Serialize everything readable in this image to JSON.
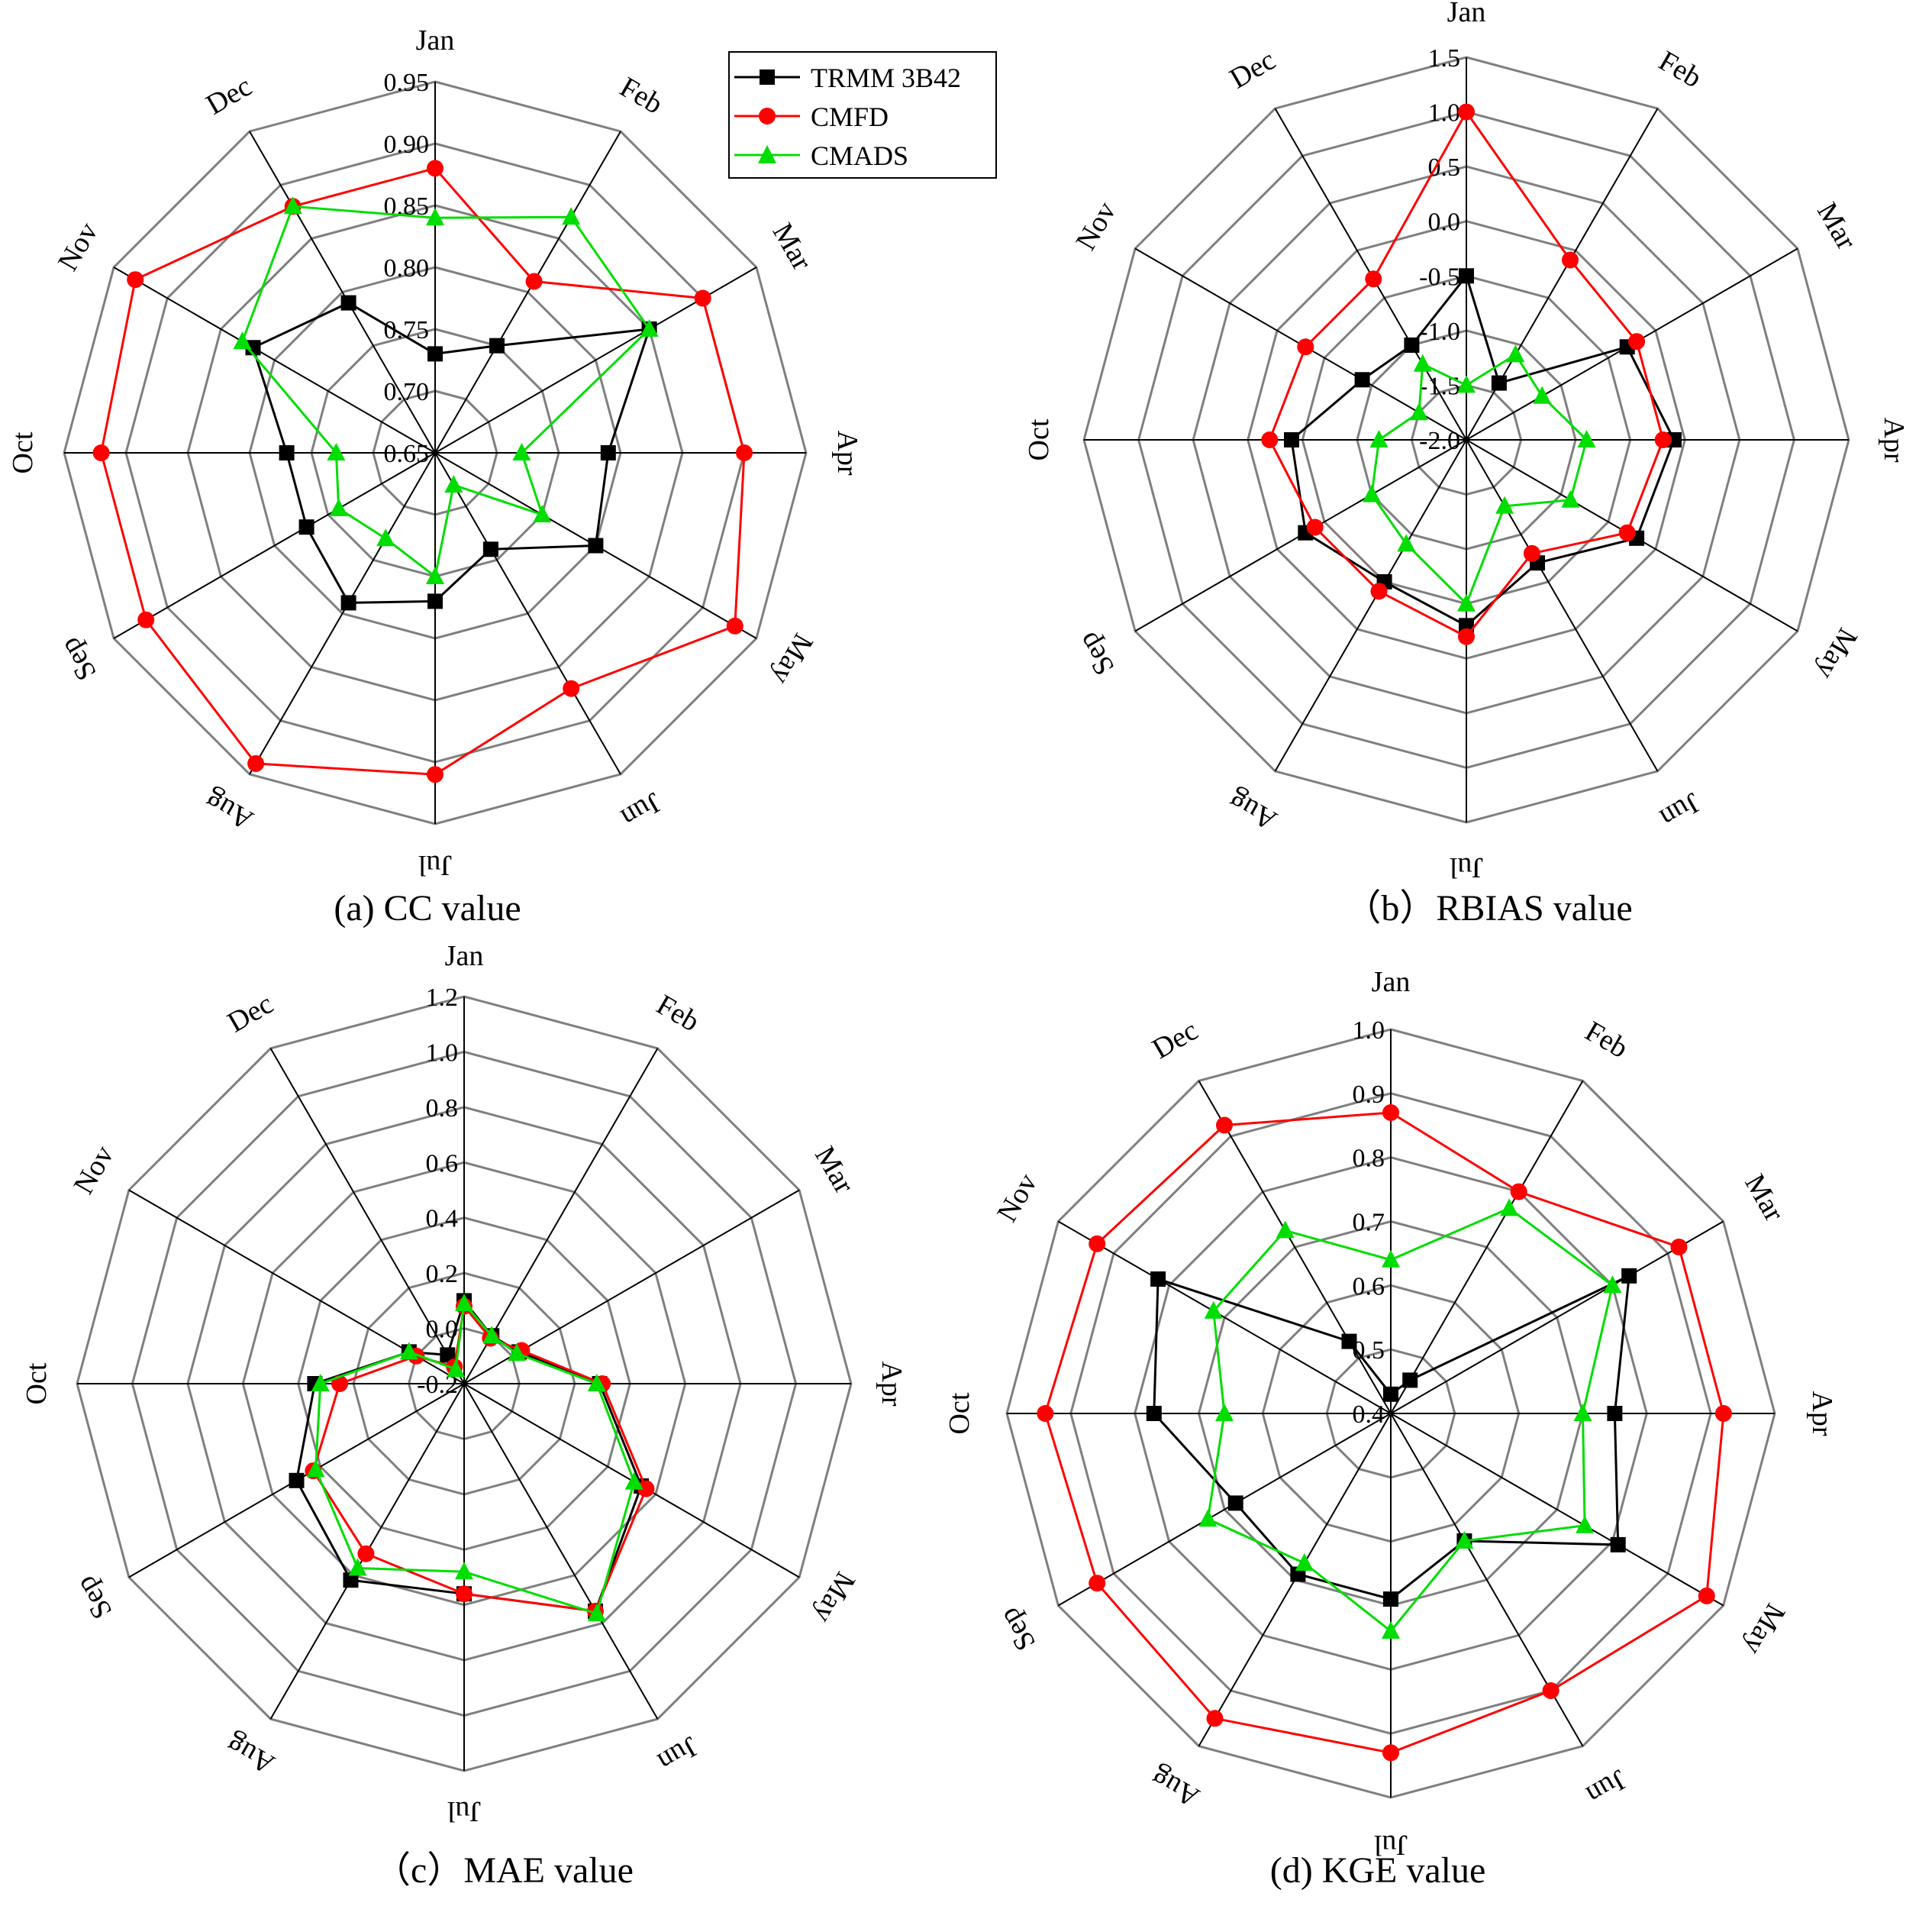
{
  "legend": [
    {
      "name": "TRMM 3B42",
      "color": "#000000",
      "marker": "square"
    },
    {
      "name": "CMFD",
      "color": "#ff0000",
      "marker": "circle"
    },
    {
      "name": "CMADS",
      "color": "#00dd00",
      "marker": "triangle"
    }
  ],
  "chart_data": [
    {
      "type": "radar",
      "caption": "(a) CC value",
      "months": [
        "Jan",
        "Feb",
        "Mar",
        "Apr",
        "May",
        "Jun",
        "Jul",
        "Aug",
        "Sep",
        "Oct",
        "Nov",
        "Dec"
      ],
      "rlim": [
        0.65,
        0.95
      ],
      "ticks": [
        "0.65",
        "0.70",
        "0.75",
        "0.80",
        "0.85",
        "0.90",
        "0.95"
      ],
      "grid": true,
      "legend_position": "top-right",
      "series": [
        {
          "name": "TRMM 3B42",
          "values": [
            0.73,
            0.75,
            0.85,
            0.79,
            0.8,
            0.74,
            0.77,
            0.79,
            0.77,
            0.77,
            0.82,
            0.79
          ]
        },
        {
          "name": "CMFD",
          "values": [
            0.88,
            0.81,
            0.9,
            0.9,
            0.93,
            0.87,
            0.91,
            0.94,
            0.92,
            0.92,
            0.93,
            0.88
          ]
        },
        {
          "name": "CMADS",
          "values": [
            0.84,
            0.87,
            0.85,
            0.72,
            0.75,
            0.68,
            0.75,
            0.73,
            0.74,
            0.73,
            0.83,
            0.88
          ]
        }
      ]
    },
    {
      "type": "radar",
      "caption": "（b）RBIAS value",
      "months": [
        "Jan",
        "Feb",
        "Mar",
        "Apr",
        "May",
        "Jun",
        "Jul",
        "Aug",
        "Sep",
        "Oct",
        "Nov",
        "Dec"
      ],
      "rlim": [
        -2.0,
        1.5
      ],
      "ticks": [
        "-2.0",
        "-1.5",
        "-1.0",
        "-0.5",
        "0.0",
        "0.5",
        "1.0",
        "1.5"
      ],
      "grid": true,
      "series": [
        {
          "name": "TRMM 3B42",
          "values": [
            -0.5,
            -1.4,
            -0.3,
            -0.1,
            -0.2,
            -0.7,
            -0.3,
            -0.5,
            -0.3,
            -0.4,
            -0.9,
            -1.0
          ]
        },
        {
          "name": "CMFD",
          "values": [
            1.0,
            -0.1,
            -0.2,
            -0.2,
            -0.3,
            -0.8,
            -0.2,
            -0.4,
            -0.4,
            -0.2,
            -0.3,
            -0.3
          ]
        },
        {
          "name": "CMADS",
          "values": [
            -1.5,
            -1.1,
            -1.2,
            -0.9,
            -0.9,
            -1.3,
            -0.5,
            -0.9,
            -1.0,
            -1.2,
            -1.5,
            -1.2
          ]
        }
      ]
    },
    {
      "type": "radar",
      "caption": "（c）MAE value",
      "months": [
        "Jan",
        "Feb",
        "Mar",
        "Apr",
        "May",
        "Jun",
        "Jul",
        "Aug",
        "Sep",
        "Oct",
        "Nov",
        "Dec"
      ],
      "rlim": [
        -0.2,
        1.2
      ],
      "ticks": [
        "-0.2",
        "0.0",
        "0.2",
        "0.4",
        "0.6",
        "0.8",
        "1.0",
        "1.2"
      ],
      "grid": true,
      "series": [
        {
          "name": "TRMM 3B42",
          "values": [
            0.1,
            0.0,
            0.03,
            0.29,
            0.54,
            0.75,
            0.56,
            0.62,
            0.5,
            0.34,
            0.03,
            -0.08
          ]
        },
        {
          "name": "CMFD",
          "values": [
            0.08,
            -0.01,
            0.04,
            0.3,
            0.56,
            0.75,
            0.56,
            0.51,
            0.43,
            0.25,
            0.0,
            -0.13
          ]
        },
        {
          "name": "CMADS",
          "values": [
            0.09,
            0.0,
            0.02,
            0.28,
            0.51,
            0.76,
            0.48,
            0.57,
            0.42,
            0.32,
            0.03,
            -0.14
          ]
        }
      ]
    },
    {
      "type": "radar",
      "caption": "(d) KGE value",
      "months": [
        "Jan",
        "Feb",
        "Mar",
        "Apr",
        "May",
        "Jun",
        "Jul",
        "Aug",
        "Sep",
        "Oct",
        "Nov",
        "Dec"
      ],
      "rlim": [
        0.4,
        1.0
      ],
      "ticks": [
        "0.4",
        "0.5",
        "0.6",
        "0.7",
        "0.8",
        "0.9",
        "1.0"
      ],
      "grid": true,
      "series": [
        {
          "name": "TRMM 3B42",
          "values": [
            0.43,
            0.46,
            0.83,
            0.75,
            0.81,
            0.63,
            0.69,
            0.69,
            0.68,
            0.77,
            0.82,
            0.53
          ]
        },
        {
          "name": "CMFD",
          "values": [
            0.87,
            0.8,
            0.92,
            0.92,
            0.97,
            0.9,
            0.93,
            0.95,
            0.93,
            0.94,
            0.93,
            0.92
          ]
        },
        {
          "name": "CMADS",
          "values": [
            0.64,
            0.77,
            0.8,
            0.7,
            0.75,
            0.63,
            0.74,
            0.67,
            0.73,
            0.66,
            0.72,
            0.73
          ]
        }
      ]
    }
  ]
}
